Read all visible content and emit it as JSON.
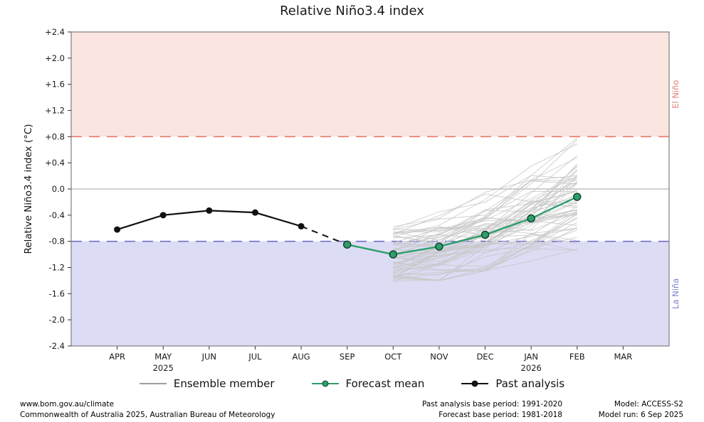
{
  "title": "Relative Niño3.4 index",
  "legend": {
    "ensemble": "Ensemble member",
    "forecast": "Forecast mean",
    "past": "Past analysis"
  },
  "footer": {
    "left_line1": "www.bom.gov.au/climate",
    "left_line2": "Commonwealth of Australia 2025, Australian Bureau of Meteorology",
    "mid_line1": "Past analysis base period: 1991-2020",
    "mid_line2": "Forecast base period: 1981-2018",
    "right_line1": "Model: ACCESS-S2",
    "right_line2": "Model run: 6 Sep 2025"
  },
  "chart_data": {
    "type": "line",
    "title": "Relative Niño3.4 index",
    "ylabel": "Relative Niño3.4 index (°C)",
    "ylim": [
      -2.4,
      2.4
    ],
    "y_ticks": [
      2.4,
      2.0,
      1.6,
      1.2,
      0.8,
      0.4,
      0.0,
      -0.4,
      -0.8,
      -1.2,
      -1.6,
      -2.0,
      -2.4
    ],
    "y_tick_labels": [
      "+2.4",
      "+2.0",
      "+1.6",
      "+1.2",
      "+0.8",
      "+0.4",
      "0.0",
      "-0.4",
      "-0.8",
      "-1.2",
      "-1.6",
      "-2.0",
      "-2.4"
    ],
    "x_categories": [
      "APR",
      "MAY",
      "JUN",
      "JUL",
      "AUG",
      "SEP",
      "OCT",
      "NOV",
      "DEC",
      "JAN",
      "FEB",
      "MAR"
    ],
    "year_labels": [
      {
        "index": 1,
        "text": "2025"
      },
      {
        "index": 9,
        "text": "2026"
      }
    ],
    "thresholds": {
      "el_nino": 0.8,
      "la_nina": -0.8,
      "zero": 0.0
    },
    "region_labels": {
      "el_nino": "El Niño",
      "la_nina": "La Niña"
    },
    "series": [
      {
        "name": "Past analysis",
        "months": [
          "APR",
          "MAY",
          "JUN",
          "JUL",
          "AUG"
        ],
        "values": [
          -0.62,
          -0.4,
          -0.33,
          -0.36,
          -0.57
        ]
      },
      {
        "name": "Forecast mean",
        "months": [
          "SEP",
          "OCT",
          "NOV",
          "DEC",
          "JAN",
          "FEB"
        ],
        "values": [
          -0.85,
          -1.0,
          -0.88,
          -0.7,
          -0.45,
          -0.12
        ]
      }
    ],
    "connector": {
      "from": {
        "month": "AUG",
        "value": -0.57
      },
      "to": {
        "month": "SEP",
        "value": -0.85
      },
      "style": "dashed"
    },
    "ensemble": {
      "name": "Ensemble member",
      "months": [
        "OCT",
        "NOV",
        "DEC",
        "JAN",
        "FEB"
      ],
      "mean": [
        -1.0,
        -0.88,
        -0.7,
        -0.45,
        -0.12
      ],
      "envelope_min": [
        -1.45,
        -1.4,
        -1.25,
        -1.1,
        -1.05
      ],
      "envelope_max": [
        -0.55,
        -0.35,
        -0.05,
        0.35,
        0.78
      ],
      "member_count": 60
    },
    "grid": "off",
    "legend_position": "bottom",
    "colors": {
      "el_nino_fill": "#fbe5e1",
      "la_nina_fill": "#dcdcf4",
      "el_nino_line": "#ee7568",
      "la_nina_line": "#6f6fc9",
      "zero_line": "#b3b3b3",
      "past": "#111111",
      "forecast": "#2e9e6b",
      "forecast_marker_edge": "#123f2c",
      "ensemble": "#c7c7c7",
      "ensemble_legend": "#9e9e9e",
      "el_nino_text": "#e0837a",
      "la_nina_text": "#7d7dcb",
      "axis": "#7f7f7f"
    }
  }
}
